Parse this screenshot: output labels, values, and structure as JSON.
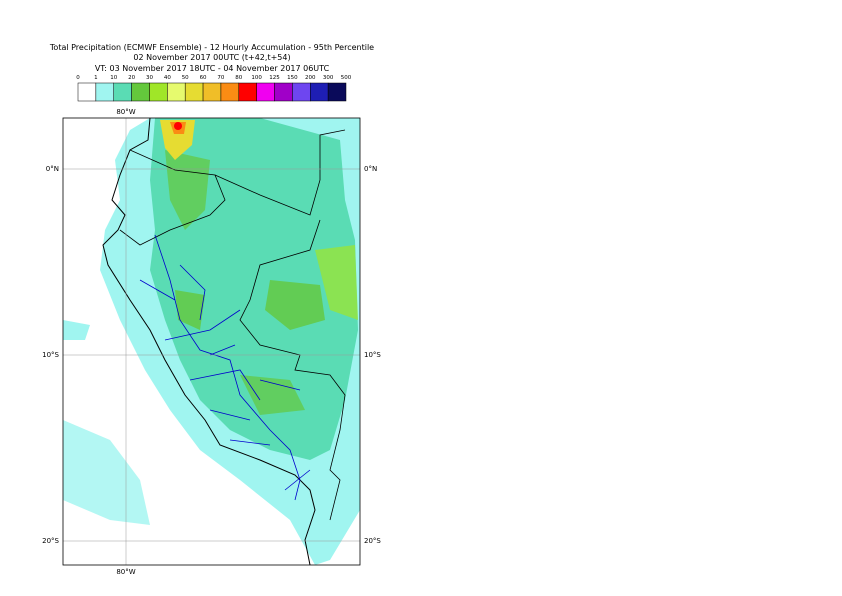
{
  "header": {
    "lines": [
      "Total Precipitation (ECMWF Ensemble) - 12 Hourly Accumulation - 95th Percentile",
      "02 November 2017 00UTC (t+42,t+54)",
      "VT: 03 November 2017 18UTC - 04 November 2017 06UTC"
    ]
  },
  "legend": {
    "ticks": [
      0,
      1,
      10,
      20,
      30,
      40,
      50,
      60,
      70,
      80,
      100,
      125,
      150,
      200,
      300,
      500
    ],
    "colors": [
      "#ffffff",
      "#a0f5f0",
      "#5adcb4",
      "#64c83c",
      "#a0e628",
      "#e6fa6e",
      "#e6dc32",
      "#f0be28",
      "#fa8c14",
      "#ff0000",
      "#f000f0",
      "#a000c8",
      "#6e46f0",
      "#1e1eb4",
      "#0a0a5a"
    ]
  },
  "map": {
    "top_labels": [
      "80°W"
    ],
    "bottom_labels": [
      "80°W"
    ],
    "left_labels": [
      "0°N",
      "10°S",
      "20°S"
    ],
    "right_labels": [
      "0°N",
      "10°S",
      "20°S"
    ]
  }
}
